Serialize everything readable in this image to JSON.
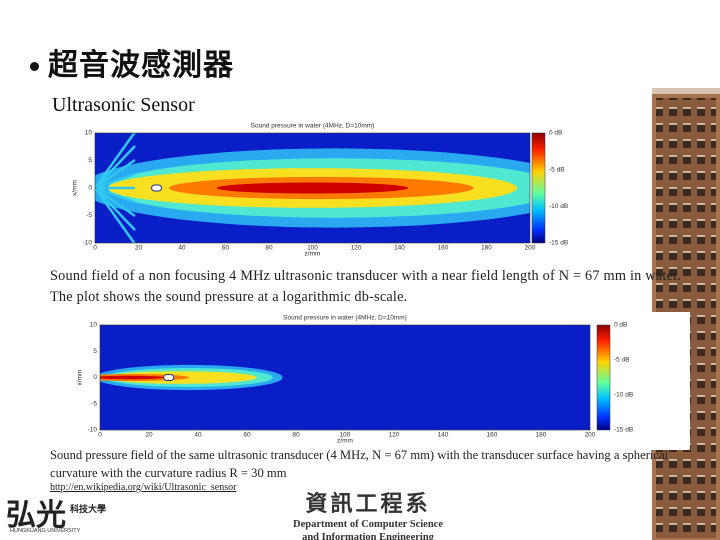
{
  "title": "超音波感測器",
  "subtitle": "Ultrasonic Sensor",
  "figures": [
    {
      "plot_title": "Sound pressure in water (4MHz, D=10mm)",
      "x_label": "z/mm",
      "y_label": "x/mm",
      "x_ticks": [
        0,
        20,
        40,
        60,
        80,
        100,
        120,
        140,
        160,
        180,
        200
      ],
      "y_ticks": [
        10,
        5,
        0,
        -5,
        -10
      ],
      "colorbar_ticks": [
        "0 dB",
        "-5 dB",
        "-10 dB",
        "-15 dB"
      ],
      "caption": "Sound field of a non focusing 4 MHz ultrasonic transducer with a near field length of N = 67 mm in water. The plot shows the sound pressure at a logarithmic db-scale."
    },
    {
      "plot_title": "Sound pressure in water (4MHz, D=10mm)",
      "x_label": "z/mm",
      "y_label": "x/mm",
      "x_ticks": [
        0,
        20,
        40,
        60,
        80,
        100,
        120,
        140,
        160,
        180,
        200
      ],
      "y_ticks": [
        10,
        5,
        0,
        -5,
        -10
      ],
      "colorbar_ticks": [
        "0 dB",
        "-5 dB",
        "-10 dB",
        "-15 dB"
      ],
      "caption": "Sound pressure field of the same ultrasonic transducer (4 MHz, N = 67 mm) with the transducer surface having a spherical curvature with the curvature radius R = 30 mm"
    }
  ],
  "source_link": "http://en.wikipedia.org/wiki/Ultrasonic_sensor",
  "logo": {
    "name": "弘光",
    "sub": "科技大學",
    "english": "HUNGKUANG UNIVERSITY"
  },
  "department": {
    "name": "資訊工程系",
    "english_1": "Department of Computer Science",
    "english_2": "and Information Engineering"
  }
}
